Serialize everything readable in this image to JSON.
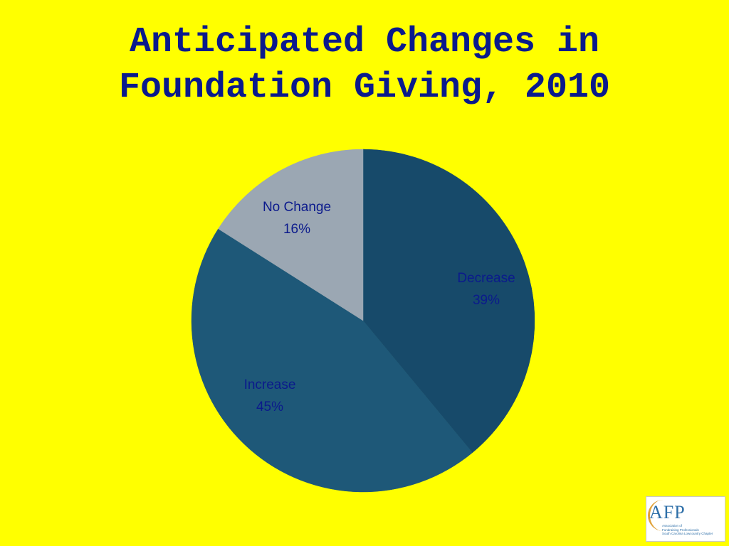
{
  "title": {
    "line1": "Anticipated Changes in",
    "line2": "Foundation Giving, 2010"
  },
  "chart_data": {
    "type": "pie",
    "title": "Anticipated Changes in Foundation Giving, 2010",
    "slices": [
      {
        "label": "Decrease",
        "value": 39,
        "display": "39%",
        "color": "#174A6A"
      },
      {
        "label": "Increase",
        "value": 45,
        "display": "45%",
        "color": "#1E5878"
      },
      {
        "label": "No Change",
        "value": 16,
        "display": "16%",
        "color": "#9BA7B3"
      }
    ],
    "start": "12 o'clock",
    "direction": "clockwise",
    "data_label_color": "#0B1A8C",
    "legend": "none"
  },
  "logo": {
    "mark": "AFP",
    "line1": "Association of",
    "line2": "Fundraising Professionals",
    "line3": "South Carolina Lowcountry Chapter"
  }
}
